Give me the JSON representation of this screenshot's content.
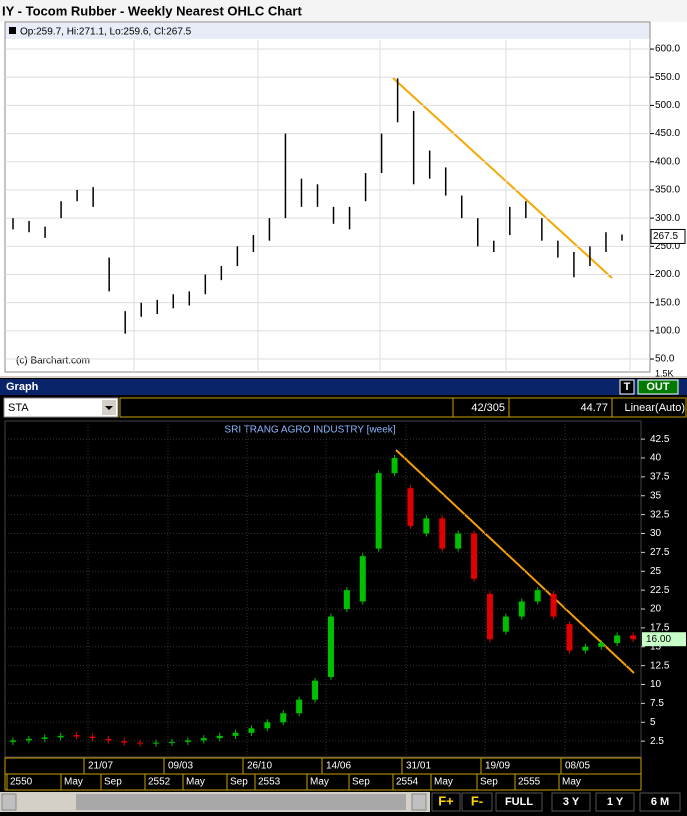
{
  "chart_data": [
    {
      "type": "ohlc",
      "title": "IY - Tocom Rubber - Weekly Nearest OHLC Chart",
      "legend": "Op:259.7, Hi:271.1, Lo:259.6, Cl:267.5",
      "copyright": "(c) Barchart.com",
      "volume_label": "1.5K",
      "last_price": 267.5,
      "color": "#000000",
      "ylim": [
        27,
        648
      ],
      "yticks": [
        {
          "value": 50,
          "label": "50.0"
        },
        {
          "value": 100,
          "label": "100.0"
        },
        {
          "value": 150,
          "label": "150.0"
        },
        {
          "value": 200,
          "label": "200.0"
        },
        {
          "value": 250,
          "label": "250.0"
        },
        {
          "value": 300,
          "label": "300.0"
        },
        {
          "value": 350,
          "label": "350.0"
        },
        {
          "value": 400,
          "label": "400.0"
        },
        {
          "value": 450,
          "label": "450.0"
        },
        {
          "value": 500,
          "label": "500.0"
        },
        {
          "value": 550,
          "label": "550.0"
        },
        {
          "value": 600,
          "label": "600.0"
        }
      ],
      "grid": true,
      "high": [
        300,
        295,
        285,
        330,
        350,
        355,
        230,
        135,
        150,
        155,
        165,
        170,
        200,
        215,
        250,
        270,
        300,
        450,
        370,
        360,
        320,
        320,
        380,
        450,
        548,
        490,
        420,
        390,
        340,
        300,
        260,
        320,
        330,
        300,
        260,
        240,
        250,
        275,
        271
      ],
      "low": [
        280,
        275,
        265,
        300,
        330,
        320,
        170,
        95,
        125,
        130,
        140,
        145,
        165,
        190,
        215,
        240,
        260,
        300,
        320,
        320,
        290,
        280,
        330,
        380,
        470,
        360,
        370,
        340,
        300,
        250,
        240,
        270,
        300,
        260,
        230,
        195,
        215,
        240,
        260
      ]
    },
    {
      "type": "candlestick",
      "panel_title": "Graph",
      "buttons": [
        "T",
        "OUT"
      ],
      "symbol": "STA",
      "counter": "42/305",
      "cursor_value": "44.77",
      "scale_mode": "Linear(Auto)",
      "title": "SRI TRANG AGRO INDUSTRY [week]",
      "last_value": {
        "value": 16,
        "label": "16.00"
      },
      "up_color": "#00c000",
      "down_color": "#e00000",
      "ylim": [
        0.4,
        44.9
      ],
      "yticks": [
        2.5,
        5,
        7.5,
        10,
        12.5,
        15,
        17.5,
        20,
        22.5,
        25,
        27.5,
        30,
        32.5,
        35,
        37.5,
        40,
        42.5
      ],
      "grid": true,
      "x_labels_top": [
        "21/07",
        "09/03",
        "26/10",
        "14/06",
        "31/01",
        "19/09",
        "08/05"
      ],
      "x_labels_bottom": [
        "2550",
        "May",
        "Sep",
        "2552",
        "May",
        "Sep",
        "2553",
        "May",
        "Sep",
        "2554",
        "May",
        "Sep",
        "2555",
        "May"
      ],
      "nav_buttons": [
        "F+",
        "F-",
        "FULL",
        "3 Y",
        "1 Y",
        "6 M"
      ],
      "open": [
        2.4,
        2.6,
        2.8,
        3.0,
        3.3,
        3.1,
        2.8,
        2.5,
        2.3,
        2.2,
        2.3,
        2.4,
        2.6,
        2.9,
        3.2,
        3.6,
        4.2,
        5.0,
        6.2,
        8,
        11,
        20,
        21,
        28,
        38,
        36,
        30,
        32,
        28,
        30,
        22,
        17,
        19,
        21,
        22,
        18,
        14.5,
        15,
        15.5,
        16.5
      ],
      "close": [
        2.6,
        2.8,
        3.0,
        3.2,
        3.1,
        2.9,
        2.6,
        2.3,
        2.2,
        2.3,
        2.4,
        2.6,
        2.9,
        3.2,
        3.6,
        4.2,
        5.0,
        6.2,
        8,
        10.5,
        19,
        22.5,
        27,
        38,
        40,
        31,
        32,
        28,
        30,
        24,
        16,
        19,
        21,
        22.5,
        19,
        14.5,
        15,
        15.5,
        16.5,
        16
      ]
    }
  ]
}
